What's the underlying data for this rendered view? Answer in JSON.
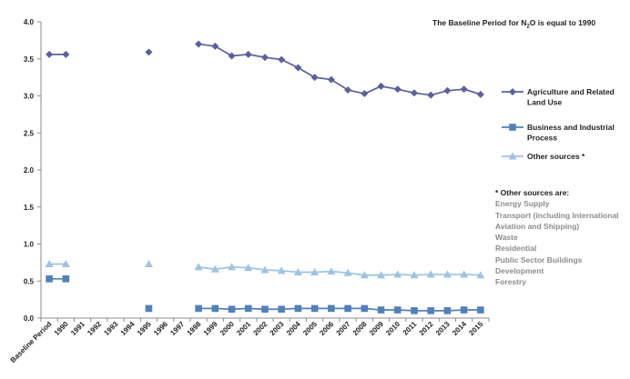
{
  "chart_data": {
    "type": "line",
    "categories": [
      "Baseline Period",
      "1990",
      "1991",
      "1992",
      "1993",
      "1994",
      "1995",
      "1996",
      "1997",
      "1998",
      "1999",
      "2000",
      "2001",
      "2002",
      "2003",
      "2004",
      "2005",
      "2006",
      "2007",
      "2008",
      "2009",
      "2010",
      "2011",
      "2012",
      "2013",
      "2014",
      "2015"
    ],
    "ylim": [
      0,
      4.0
    ],
    "yticks": [
      "0.0",
      "0.5",
      "1.0",
      "1.5",
      "2.0",
      "2.5",
      "3.0",
      "3.5",
      "4.0"
    ],
    "grid": false,
    "legend_position": "right",
    "series": [
      {
        "name": "Agriculture and Related Land Use",
        "name_lines": [
          "Agriculture and Related",
          "Land Use"
        ],
        "color": "#5b5f9e",
        "marker": "diamond",
        "values": [
          3.56,
          3.56,
          null,
          null,
          null,
          null,
          3.59,
          null,
          null,
          3.7,
          3.67,
          3.54,
          3.56,
          3.52,
          3.49,
          3.38,
          3.25,
          3.22,
          3.08,
          3.03,
          3.13,
          3.09,
          3.04,
          3.01,
          3.07,
          3.09,
          3.02
        ]
      },
      {
        "name": "Business and Industrial Process",
        "name_lines": [
          "Business and Industrial",
          "Process"
        ],
        "color": "#4f81bd",
        "marker": "square",
        "values": [
          0.53,
          0.53,
          null,
          null,
          null,
          null,
          0.13,
          null,
          null,
          0.13,
          0.13,
          0.12,
          0.13,
          0.12,
          0.12,
          0.13,
          0.13,
          0.13,
          0.13,
          0.13,
          0.11,
          0.11,
          0.1,
          0.1,
          0.1,
          0.11,
          0.11
        ]
      },
      {
        "name": "Other sources *",
        "name_lines": [
          "Other sources *"
        ],
        "color": "#9dc3e6",
        "marker": "triangle",
        "values": [
          0.73,
          0.73,
          null,
          null,
          null,
          null,
          0.73,
          null,
          null,
          0.69,
          0.66,
          0.69,
          0.68,
          0.65,
          0.64,
          0.62,
          0.62,
          0.63,
          0.61,
          0.58,
          0.58,
          0.59,
          0.58,
          0.59,
          0.59,
          0.59,
          0.58
        ]
      }
    ]
  },
  "note": {
    "prefix": "The Baseline Period for N",
    "sub": "2",
    "suffix": "O is equal to 1990"
  },
  "other_sources": {
    "heading": "* Other sources are:",
    "items": [
      "Energy Supply",
      "Transport (including International Aviation and Shipping)",
      "Waste",
      "Residential",
      "Public Sector Buildings",
      "Development",
      "Forestry"
    ]
  }
}
